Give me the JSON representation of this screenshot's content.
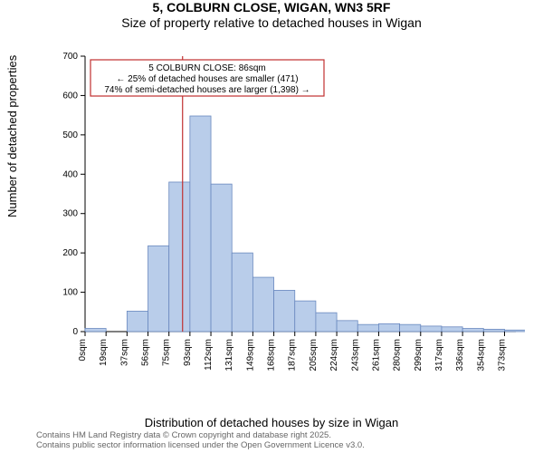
{
  "title_line1": "5, COLBURN CLOSE, WIGAN, WN3 5RF",
  "title_line2": "Size of property relative to detached houses in Wigan",
  "xlabel": "Distribution of detached houses by size in Wigan",
  "ylabel": "Number of detached properties",
  "footer_line1": "Contains HM Land Registry data © Crown copyright and database right 2025.",
  "footer_line2": "Contains public sector information licensed under the Open Government Licence v3.0.",
  "annotation": {
    "line1": "5 COLBURN CLOSE: 86sqm",
    "line2": "← 25% of detached houses are smaller (471)",
    "line3": "74% of semi-detached houses are larger (1,398) →",
    "box_stroke": "#c03030",
    "box_fill": "#ffffff",
    "text_color": "#000000",
    "fontsize": 10
  },
  "marker_line": {
    "x_value": 86,
    "color": "#c03030",
    "width": 1.2
  },
  "chart": {
    "type": "histogram",
    "bar_fill": "#b9cdea",
    "bar_stroke": "#6a89bf",
    "bg": "#ffffff",
    "axis_color": "#000000",
    "tick_fontsize": 10,
    "xlim": [
      0,
      380
    ],
    "ylim": [
      0,
      700
    ],
    "ytick_step": 100,
    "xtick_step": 18.5,
    "xtick_labels": [
      "0sqm",
      "19sqm",
      "37sqm",
      "56sqm",
      "75sqm",
      "93sqm",
      "112sqm",
      "131sqm",
      "149sqm",
      "168sqm",
      "187sqm",
      "205sqm",
      "224sqm",
      "243sqm",
      "261sqm",
      "280sqm",
      "299sqm",
      "317sqm",
      "336sqm",
      "354sqm",
      "373sqm"
    ],
    "bin_width": 18.5,
    "values": [
      8,
      0,
      52,
      218,
      380,
      548,
      375,
      200,
      138,
      105,
      78,
      48,
      28,
      18,
      20,
      18,
      14,
      12,
      8,
      6,
      4
    ]
  }
}
